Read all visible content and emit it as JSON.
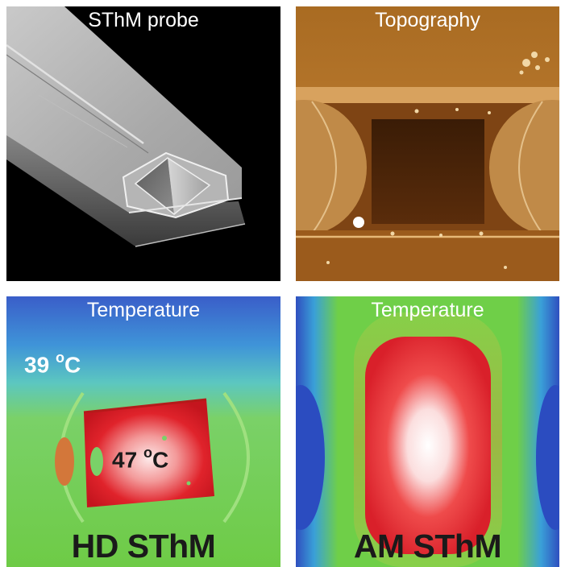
{
  "panels": {
    "probe": {
      "title": "SThM probe"
    },
    "topo": {
      "title": "Topography"
    },
    "hd": {
      "title": "Temperature",
      "label": "HD SThM",
      "temp_high_value": "39 ",
      "temp_high_unit_sup": "o",
      "temp_high_unit": "C",
      "temp_low_value": "47 ",
      "temp_low_unit_sup": "o",
      "temp_low_unit": "C"
    },
    "am": {
      "title": "Temperature",
      "label": "AM SThM"
    }
  }
}
